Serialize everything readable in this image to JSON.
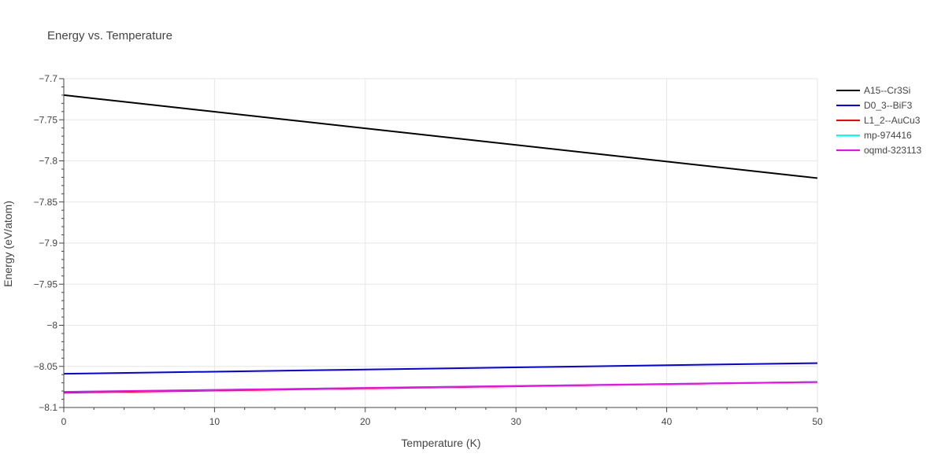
{
  "chart_data": {
    "type": "line",
    "title": "Energy vs. Temperature",
    "xlabel": "Temperature (K)",
    "ylabel": "Energy (eV/atom)",
    "xlim": [
      0,
      50
    ],
    "ylim": [
      -8.1,
      -7.7
    ],
    "x_ticks": [
      0,
      10,
      20,
      30,
      40,
      50
    ],
    "x_tick_labels": [
      "0",
      "10",
      "20",
      "30",
      "40",
      "50"
    ],
    "y_ticks": [
      -7.7,
      -7.75,
      -7.8,
      -7.85,
      -7.9,
      -7.95,
      -8,
      -8.05,
      -8.1
    ],
    "y_tick_labels": [
      "−7.7",
      "−7.75",
      "−7.8",
      "−7.85",
      "−7.9",
      "−7.95",
      "−8",
      "−8.05",
      "−8.1"
    ],
    "grid": true,
    "legend_position": "top-right",
    "series": [
      {
        "name": "A15--Cr3Si",
        "color": "#000000",
        "x": [
          0,
          50
        ],
        "y": [
          -7.72,
          -7.821
        ]
      },
      {
        "name": "D0_3--BiF3",
        "color": "#0000ee",
        "x": [
          0,
          50
        ],
        "y": [
          -8.059,
          -8.046
        ]
      },
      {
        "name": "L1_2--AuCu3",
        "color": "#ff0000",
        "x": [
          0,
          50
        ],
        "y": [
          -8.082,
          -8.069
        ]
      },
      {
        "name": "mp-974416",
        "color": "#00ffff",
        "x": [
          0,
          50
        ],
        "y": [
          -8.081,
          -8.069
        ]
      },
      {
        "name": "oqmd-323113",
        "color": "#ff00ff",
        "x": [
          0,
          50
        ],
        "y": [
          -8.081,
          -8.069
        ]
      }
    ]
  }
}
